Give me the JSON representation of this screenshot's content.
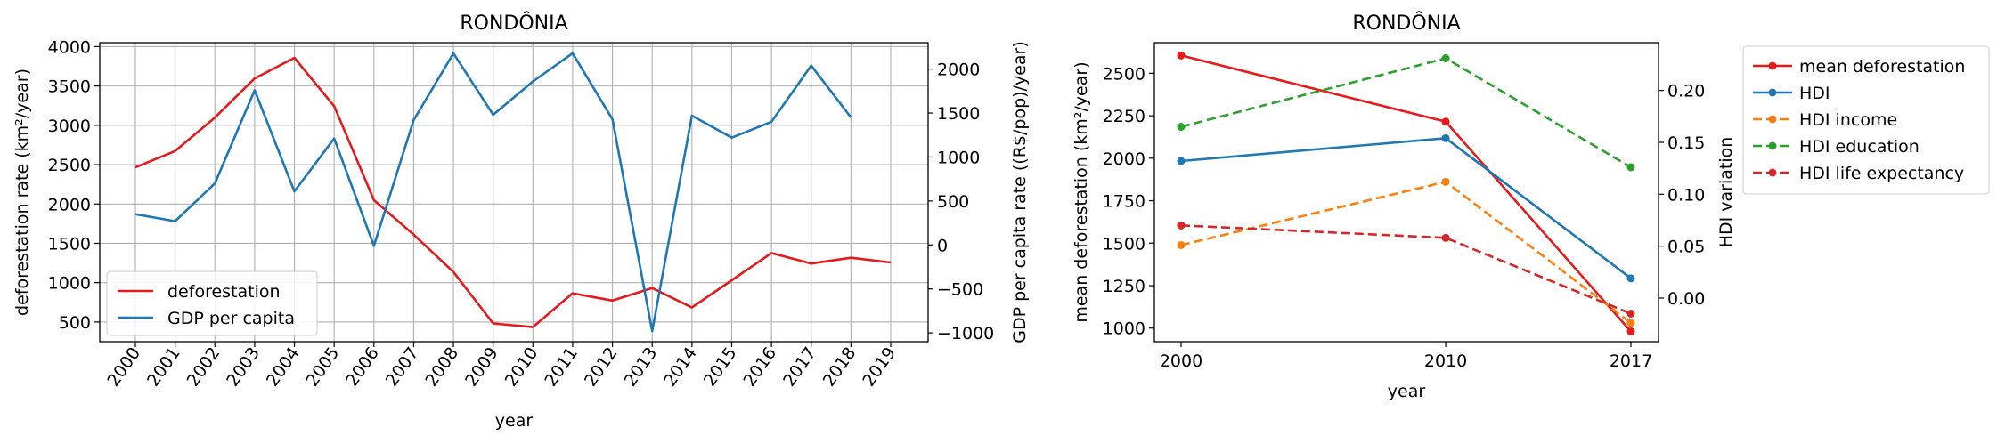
{
  "chart_data": [
    {
      "type": "line",
      "title": "RONDÔNIA",
      "xlabel": "year",
      "ylabel": "deforestation rate (km²/year)",
      "y2label": "GDP per capita rate ((R$/pop)/year)",
      "categories": [
        "2000",
        "2001",
        "2002",
        "2003",
        "2004",
        "2005",
        "2006",
        "2007",
        "2008",
        "2009",
        "2010",
        "2011",
        "2012",
        "2013",
        "2014",
        "2015",
        "2016",
        "2017",
        "2018",
        "2019"
      ],
      "ylim": [
        250,
        4050
      ],
      "yticks": [
        500,
        1000,
        1500,
        2000,
        2500,
        3000,
        3500,
        4000
      ],
      "y2lim": [
        -1100,
        2300
      ],
      "y2ticks": [
        -1000,
        -500,
        0,
        500,
        1000,
        1500,
        2000
      ],
      "grid": true,
      "legend": "lower-left",
      "series": [
        {
          "name": "deforestation",
          "axis": "left",
          "color": "#e41a1c",
          "style": "solid",
          "values": [
            2465,
            2673,
            3099,
            3597,
            3858,
            3244,
            2049,
            1611,
            1136,
            482,
            435,
            865,
            773,
            932,
            684,
            1030,
            1376,
            1243,
            1316,
            1257
          ]
        },
        {
          "name": "GDP per capita",
          "axis": "right",
          "color": "#1f77b4",
          "style": "solid",
          "values": [
            350,
            270,
            700,
            1760,
            610,
            1210,
            -10,
            1420,
            2180,
            1480,
            1860,
            2180,
            1430,
            -980,
            1470,
            1220,
            1400,
            2040,
            1450,
            null
          ]
        }
      ]
    },
    {
      "type": "line",
      "title": "RONDÔNIA",
      "xlabel": "year",
      "ylabel": "mean deforestation (km²/year)",
      "y2label": "HDI variation",
      "categories": [
        "2000",
        "2010",
        "2017"
      ],
      "x": [
        2000,
        2010,
        2017
      ],
      "ylim": [
        920,
        2680
      ],
      "yticks": [
        1000,
        1250,
        1500,
        1750,
        2000,
        2250,
        2500
      ],
      "y2lim": [
        -0.042,
        0.246
      ],
      "y2ticks": [
        0.0,
        0.05,
        0.1,
        0.15,
        0.2
      ],
      "y2ticklabels": [
        "0.00",
        "0.05",
        "0.10",
        "0.15",
        "0.20"
      ],
      "grid": false,
      "legend": "outside-right",
      "series": [
        {
          "name": "mean deforestation",
          "axis": "left",
          "color": "#e41a1c",
          "style": "solid",
          "values": [
            2605,
            2215,
            980
          ]
        },
        {
          "name": "HDI",
          "axis": "right",
          "color": "#1f77b4",
          "style": "solid",
          "values": [
            0.132,
            0.154,
            0.019
          ]
        },
        {
          "name": "HDI income",
          "axis": "right",
          "color": "#ff7f0e",
          "style": "dashed",
          "values": [
            0.051,
            0.112,
            -0.024
          ]
        },
        {
          "name": "HDI education",
          "axis": "right",
          "color": "#2ca02c",
          "style": "dashed",
          "values": [
            0.165,
            0.231,
            0.126
          ]
        },
        {
          "name": "HDI life expectancy",
          "axis": "right",
          "color": "#d62728",
          "style": "dashed",
          "values": [
            0.07,
            0.058,
            -0.015
          ]
        }
      ]
    }
  ]
}
